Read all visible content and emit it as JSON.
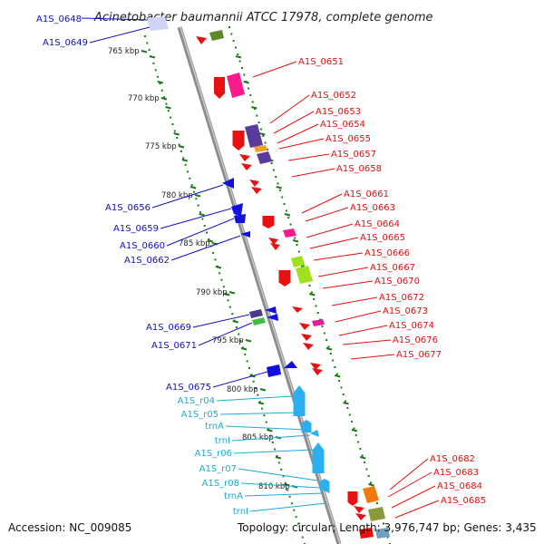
{
  "header": {
    "title": "Acinetobacter baumannii ATCC 17978, complete genome",
    "top_left_label": "A1S_0648"
  },
  "footer": {
    "accession": "Accession: NC_009085",
    "topology": "Topology: circular; Length: 3,976,747 bp; Genes: 3,435"
  },
  "colors": {
    "backbone": "#8c8c8c",
    "ticks": "#1a7a1a",
    "left_labels": "#1010c0",
    "right_labels": "#e01010",
    "rna_labels": "#1fa8d8"
  },
  "kbp_markers": [
    "765 kbp",
    "770 kbp",
    "775 kbp",
    "780 kbp",
    "785 kbp",
    "790 kbp",
    "795 kbp",
    "800 kbp",
    "805 kbp",
    "810 kbp"
  ],
  "left_labels": [
    "A1S_0649",
    "A1S_0656",
    "A1S_0659",
    "A1S_0660",
    "A1S_0662",
    "A1S_0669",
    "A1S_0671",
    "A1S_0675"
  ],
  "rna_labels": [
    "A1S_r04",
    "A1S_r05",
    "trnA",
    "trnI",
    "A1S_r06",
    "A1S_r07",
    "A1S_r08",
    "trnA",
    "trnI"
  ],
  "right_labels": [
    "A1S_0651",
    "A1S_0652",
    "A1S_0653",
    "A1S_0654",
    "A1S_0655",
    "A1S_0657",
    "A1S_0658",
    "A1S_0661",
    "A1S_0663",
    "A1S_0664",
    "A1S_0665",
    "A1S_0666",
    "A1S_0667",
    "A1S_0670",
    "A1S_0672",
    "A1S_0673",
    "A1S_0674",
    "A1S_0676",
    "A1S_0677",
    "A1S_0682",
    "A1S_0683",
    "A1S_0684",
    "A1S_0685"
  ]
}
